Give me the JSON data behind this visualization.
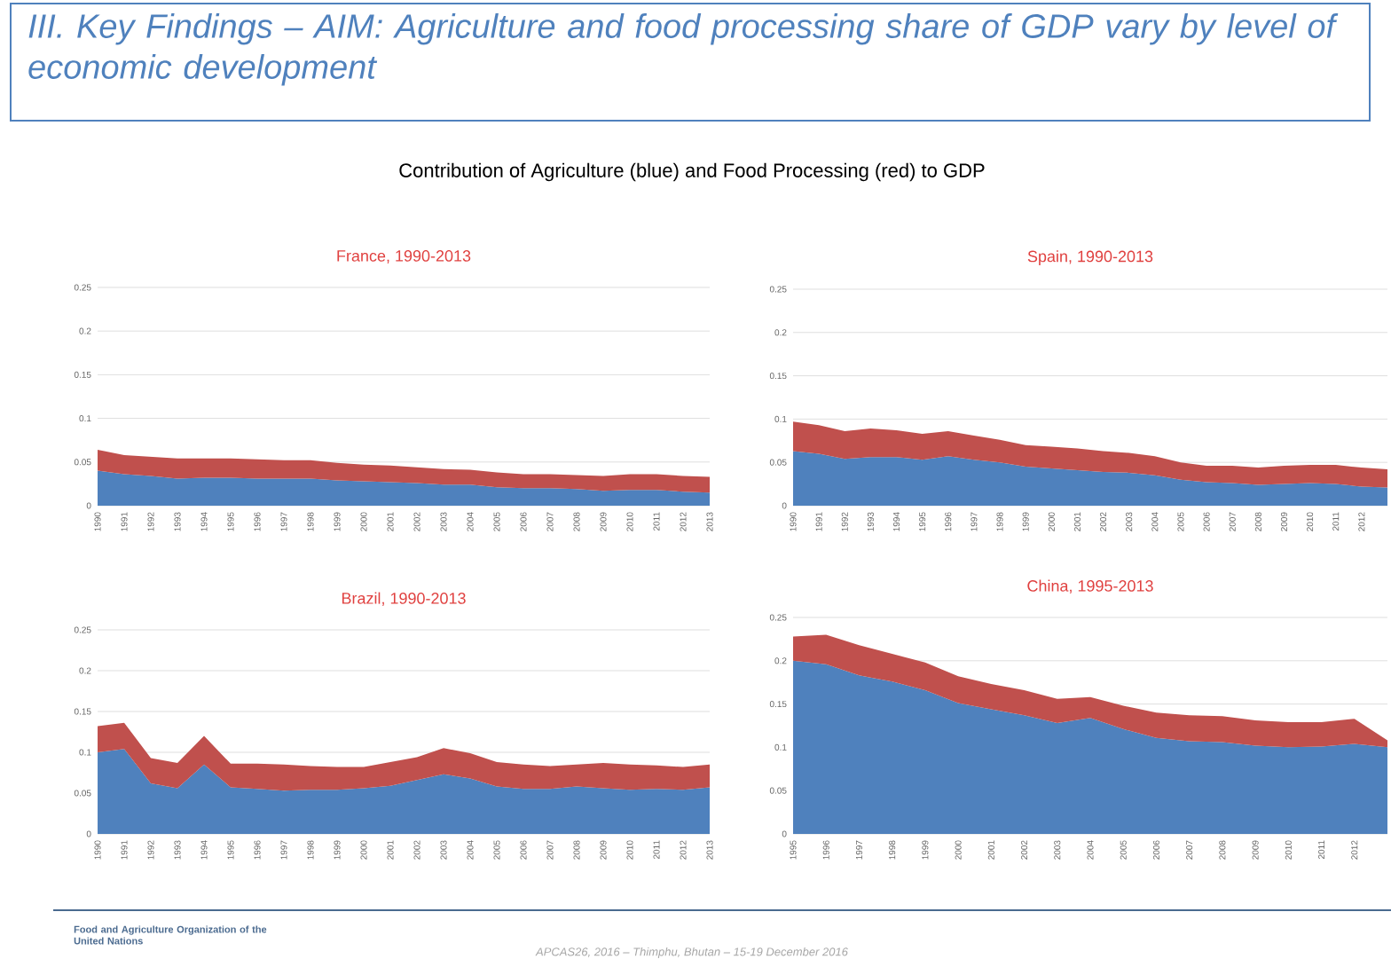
{
  "chart_data": [
    {
      "type": "area",
      "title": "France, 1990-2013",
      "stacked": true,
      "grid": "y",
      "annotations": [
        "III. Key Findings – AIM: Agriculture and food processing share of GDP vary by level of economic development",
        "Contribution of Agriculture (blue) and Food Processing (red) to GDP"
      ],
      "categories": [
        "1990",
        "1991",
        "1992",
        "1993",
        "1994",
        "1995",
        "1996",
        "1997",
        "1998",
        "1999",
        "2000",
        "2001",
        "2002",
        "2003",
        "2004",
        "2005",
        "2006",
        "2007",
        "2008",
        "2009",
        "2010",
        "2011",
        "2012",
        "2013"
      ],
      "ylim": [
        0,
        0.25
      ],
      "yticks": [
        0,
        0.05,
        0.1,
        0.15,
        0.2,
        0.25
      ],
      "series": [
        {
          "color": "#4f81bd",
          "values": [
            0.04,
            0.036,
            0.034,
            0.031,
            0.032,
            0.032,
            0.031,
            0.031,
            0.031,
            0.029,
            0.028,
            0.027,
            0.026,
            0.024,
            0.024,
            0.021,
            0.02,
            0.02,
            0.019,
            0.017,
            0.018,
            0.018,
            0.016,
            0.015
          ]
        },
        {
          "color": "#c0504d",
          "values": [
            0.024,
            0.022,
            0.022,
            0.023,
            0.022,
            0.022,
            0.022,
            0.021,
            0.021,
            0.02,
            0.019,
            0.019,
            0.018,
            0.018,
            0.017,
            0.017,
            0.016,
            0.016,
            0.016,
            0.017,
            0.018,
            0.018,
            0.018,
            0.018
          ]
        }
      ]
    },
    {
      "type": "area",
      "title": "Spain, 1990-2013",
      "stacked": true,
      "grid": "y",
      "categories": [
        "1990",
        "1991",
        "1992",
        "1993",
        "1994",
        "1995",
        "1996",
        "1997",
        "1998",
        "1999",
        "2000",
        "2001",
        "2002",
        "2003",
        "2004",
        "2005",
        "2006",
        "2007",
        "2008",
        "2009",
        "2010",
        "2011",
        "2012",
        null
      ],
      "ylim": [
        0,
        0.25
      ],
      "yticks": [
        0,
        0.05,
        0.1,
        0.15,
        0.2,
        0.25
      ],
      "series": [
        {
          "color": "#4f81bd",
          "values": [
            0.063,
            0.06,
            0.054,
            0.056,
            0.056,
            0.053,
            0.057,
            0.053,
            0.05,
            0.045,
            0.043,
            0.041,
            0.039,
            0.038,
            0.035,
            0.03,
            0.027,
            0.026,
            0.024,
            0.025,
            0.026,
            0.025,
            0.022,
            0.021
          ]
        },
        {
          "color": "#c0504d",
          "values": [
            0.034,
            0.033,
            0.032,
            0.033,
            0.031,
            0.03,
            0.029,
            0.028,
            0.026,
            0.025,
            0.025,
            0.025,
            0.024,
            0.023,
            0.022,
            0.02,
            0.019,
            0.02,
            0.02,
            0.021,
            0.021,
            0.022,
            0.022,
            0.021
          ]
        }
      ]
    },
    {
      "type": "area",
      "title": "Brazil, 1990-2013",
      "stacked": true,
      "grid": "y",
      "annotations": [
        "Food and Agriculture Organization of the United Nations",
        "APCAS26, 2016 – Thimphu, Bhutan  – 15-19 December 2016"
      ],
      "categories": [
        "1990",
        "1991",
        "1992",
        "1993",
        "1994",
        "1995",
        "1996",
        "1997",
        "1998",
        "1999",
        "2000",
        "2001",
        "2002",
        "2003",
        "2004",
        "2005",
        "2006",
        "2007",
        "2008",
        "2009",
        "2010",
        "2011",
        "2012",
        "2013"
      ],
      "ylim": [
        0,
        0.25
      ],
      "yticks": [
        0,
        0.05,
        0.1,
        0.15,
        0.2,
        0.25
      ],
      "series": [
        {
          "color": "#4f81bd",
          "values": [
            0.1,
            0.104,
            0.062,
            0.056,
            0.085,
            0.057,
            0.055,
            0.053,
            0.054,
            0.054,
            0.056,
            0.059,
            0.066,
            0.073,
            0.068,
            0.058,
            0.055,
            0.055,
            0.058,
            0.056,
            0.054,
            0.055,
            0.054,
            0.057
          ]
        },
        {
          "color": "#c0504d",
          "values": [
            0.032,
            0.032,
            0.031,
            0.031,
            0.035,
            0.029,
            0.031,
            0.032,
            0.029,
            0.028,
            0.026,
            0.029,
            0.028,
            0.032,
            0.031,
            0.03,
            0.03,
            0.028,
            0.027,
            0.031,
            0.031,
            0.029,
            0.028,
            0.028
          ]
        }
      ]
    },
    {
      "type": "area",
      "title": "China, 1995-2013",
      "stacked": true,
      "grid": "y",
      "categories": [
        "1995",
        "1996",
        "1997",
        "1998",
        "1999",
        "2000",
        "2001",
        "2002",
        "2003",
        "2004",
        "2005",
        "2006",
        "2007",
        "2008",
        "2009",
        "2010",
        "2011",
        "2012",
        null
      ],
      "ylim": [
        0,
        0.25
      ],
      "yticks": [
        0,
        0.05,
        0.1,
        0.15,
        0.2,
        0.25
      ],
      "series": [
        {
          "color": "#4f81bd",
          "values": [
            0.2,
            0.196,
            0.183,
            0.176,
            0.166,
            0.151,
            0.144,
            0.137,
            0.128,
            0.134,
            0.121,
            0.111,
            0.107,
            0.106,
            0.102,
            0.1,
            0.101,
            0.104,
            0.1
          ]
        },
        {
          "color": "#c0504d",
          "values": [
            0.028,
            0.034,
            0.035,
            0.032,
            0.032,
            0.031,
            0.029,
            0.029,
            0.028,
            0.024,
            0.027,
            0.029,
            0.03,
            0.03,
            0.029,
            0.029,
            0.028,
            0.029,
            0.008
          ]
        }
      ]
    }
  ]
}
